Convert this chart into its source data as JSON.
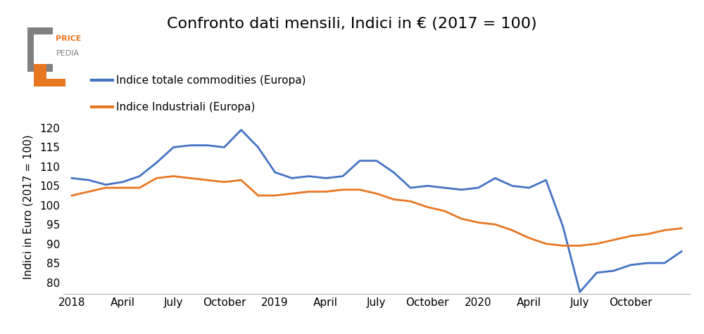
{
  "title": "Confronto dati mensili, Indici in € (2017 = 100)",
  "ylabel": "Indici in Euro (2017 = 100)",
  "line1_label": "Indice totale commodities (Europa)",
  "line2_label": "Indice Industriali (Europa)",
  "line1_color": "#4472C4",
  "line2_color": "#E87722",
  "background_color": "#ffffff",
  "ylim": [
    77,
    122
  ],
  "yticks": [
    80,
    85,
    90,
    95,
    100,
    105,
    110,
    115,
    120
  ],
  "line1_data": [
    107.0,
    106.5,
    105.3,
    106.0,
    107.5,
    111.0,
    115.0,
    115.5,
    115.5,
    115.0,
    119.5,
    115.0,
    108.5,
    107.0,
    107.5,
    107.0,
    107.5,
    111.5,
    111.5,
    108.5,
    104.5,
    105.0,
    104.5,
    104.0,
    104.5,
    107.0,
    105.0,
    104.5,
    106.5,
    94.5,
    77.5,
    82.5,
    83.0,
    84.5,
    85.0,
    85.0,
    88.0
  ],
  "line2_data": [
    102.5,
    103.5,
    104.5,
    104.5,
    104.5,
    107.0,
    107.5,
    107.0,
    106.5,
    106.0,
    106.5,
    102.5,
    102.5,
    103.0,
    103.5,
    103.5,
    104.0,
    104.0,
    103.0,
    101.5,
    101.0,
    99.5,
    98.5,
    96.5,
    95.5,
    95.0,
    93.5,
    91.5,
    90.0,
    89.5,
    89.5,
    90.0,
    91.0,
    92.0,
    92.5,
    93.5,
    94.0
  ],
  "xtick_labels": [
    "2018",
    "April",
    "July",
    "October",
    "2019",
    "April",
    "July",
    "October",
    "2020",
    "April",
    "July",
    "October"
  ],
  "xtick_positions": [
    0,
    3,
    6,
    9,
    12,
    15,
    18,
    21,
    24,
    27,
    30,
    33
  ],
  "title_fontsize": 16,
  "label_fontsize": 11,
  "tick_fontsize": 11,
  "legend_fontsize": 11,
  "linewidth": 2.0,
  "logo_price_color": "#E87722",
  "logo_pedia_color": "#808080",
  "logo_box_color": "#808080"
}
